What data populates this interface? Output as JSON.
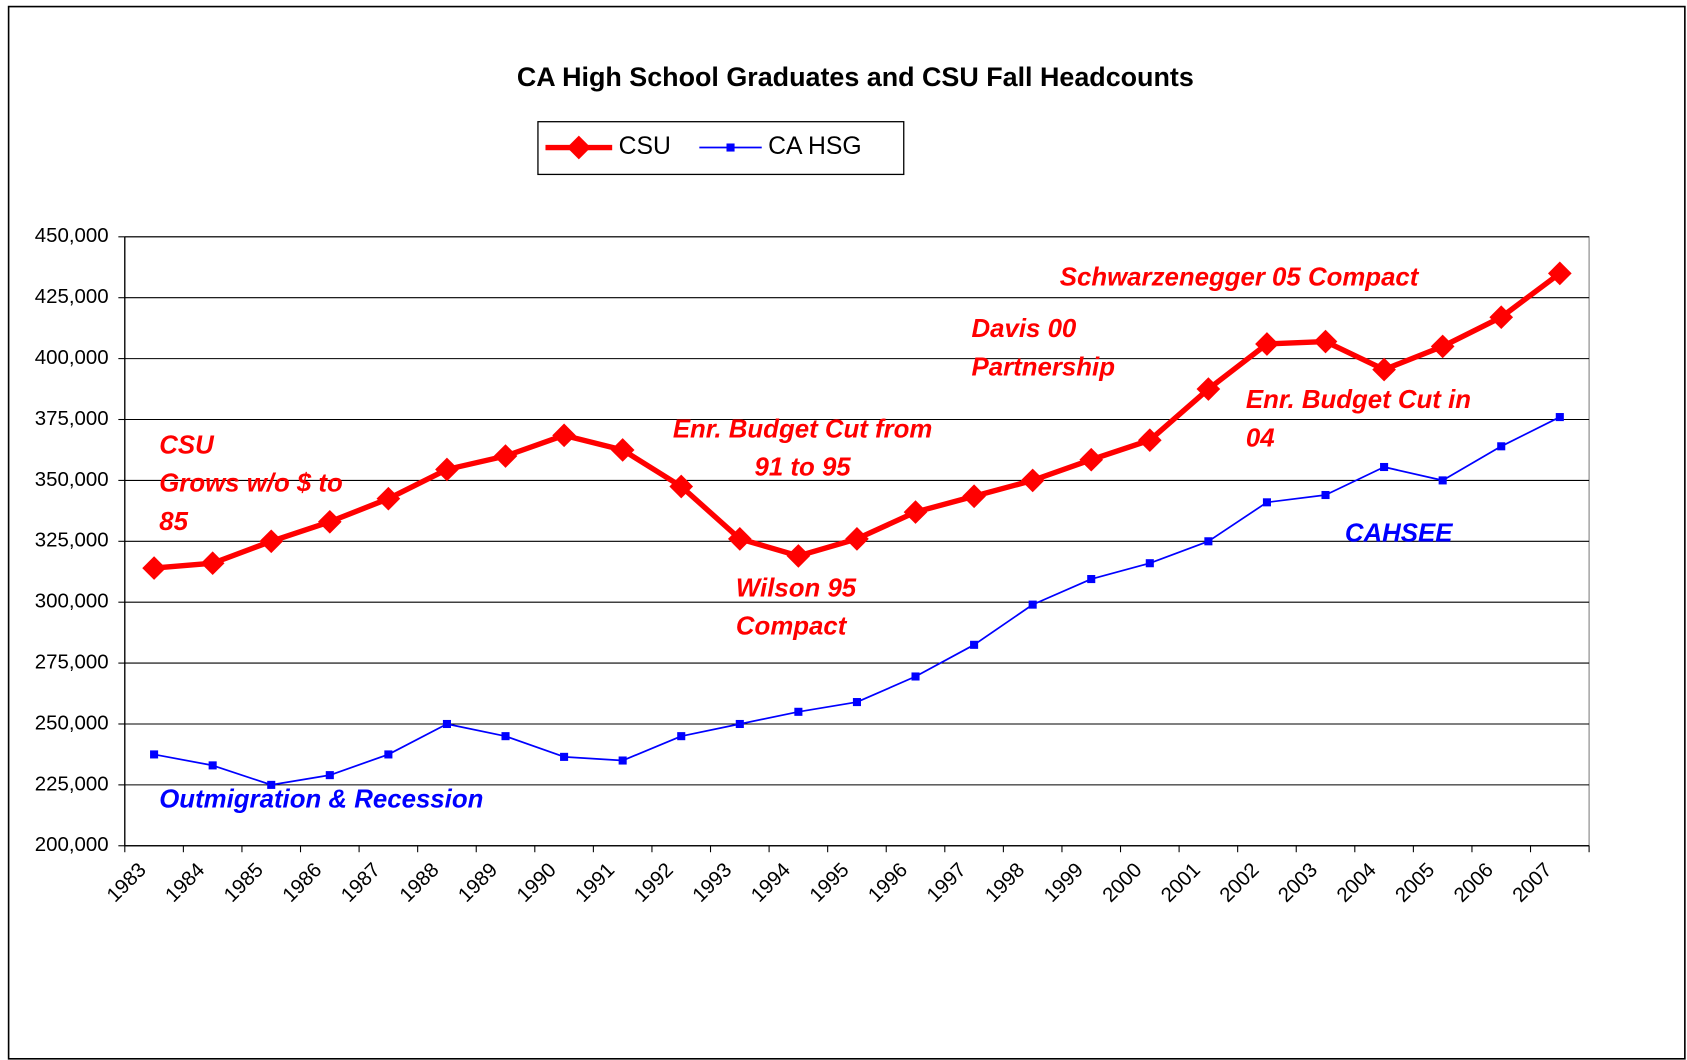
{
  "chart_data": {
    "type": "line",
    "title": "CA High School Graduates and CSU Fall Headcounts",
    "categories": [
      "1983",
      "1984",
      "1985",
      "1986",
      "1987",
      "1988",
      "1989",
      "1990",
      "1991",
      "1992",
      "1993",
      "1994",
      "1995",
      "1996",
      "1997",
      "1998",
      "1999",
      "2000",
      "2001",
      "2002",
      "2003",
      "2004",
      "2005",
      "2006",
      "2007"
    ],
    "series": [
      {
        "name": "CSU",
        "color": "#ff0000",
        "marker": "diamond",
        "values": [
          314000,
          316000,
          325000,
          333000,
          342500,
          354500,
          360000,
          368500,
          362500,
          347500,
          326000,
          319000,
          326000,
          337000,
          343500,
          350000,
          358500,
          366500,
          387500,
          406000,
          407000,
          395500,
          405000,
          417000,
          435000
        ]
      },
      {
        "name": "CA HSG",
        "color": "#0000ff",
        "marker": "square",
        "values": [
          237500,
          233000,
          225000,
          229000,
          237500,
          250000,
          245000,
          236500,
          235000,
          245000,
          250000,
          255000,
          259000,
          269500,
          282500,
          299000,
          309500,
          316000,
          325000,
          341000,
          344000,
          355500,
          350000,
          364000,
          376000
        ]
      }
    ],
    "ylim": [
      200000,
      450000
    ],
    "yticks": [
      {
        "value": 200000,
        "label": "200,000"
      },
      {
        "value": 225000,
        "label": "225,000"
      },
      {
        "value": 250000,
        "label": "250,000"
      },
      {
        "value": 275000,
        "label": "275,000"
      },
      {
        "value": 300000,
        "label": "300,000"
      },
      {
        "value": 325000,
        "label": "325,000"
      },
      {
        "value": 350000,
        "label": "350,000"
      },
      {
        "value": 375000,
        "label": "375,000"
      },
      {
        "value": 400000,
        "label": "400,000"
      },
      {
        "value": 425000,
        "label": "425,000"
      },
      {
        "value": 450000,
        "label": "450,000"
      }
    ],
    "grid": true,
    "legend": "top",
    "annotations": [
      {
        "lines": [
          "CSU",
          "Grows w/o $ to",
          "85"
        ],
        "color": "#ff0000"
      },
      {
        "lines": [
          "Enr. Budget Cut from",
          "91 to 95"
        ],
        "color": "#ff0000"
      },
      {
        "lines": [
          "Wilson 95",
          "Compact"
        ],
        "color": "#ff0000"
      },
      {
        "lines": [
          "Davis  00",
          "Partnership"
        ],
        "color": "#ff0000"
      },
      {
        "lines": [
          "Schwarzenegger 05 Compact"
        ],
        "color": "#ff0000"
      },
      {
        "lines": [
          "Enr. Budget Cut in",
          "04"
        ],
        "color": "#ff0000"
      },
      {
        "lines": [
          "CAHSEE"
        ],
        "color": "#0000ff"
      },
      {
        "lines": [
          "Outmigration & Recession"
        ],
        "color": "#0000ff"
      }
    ]
  }
}
